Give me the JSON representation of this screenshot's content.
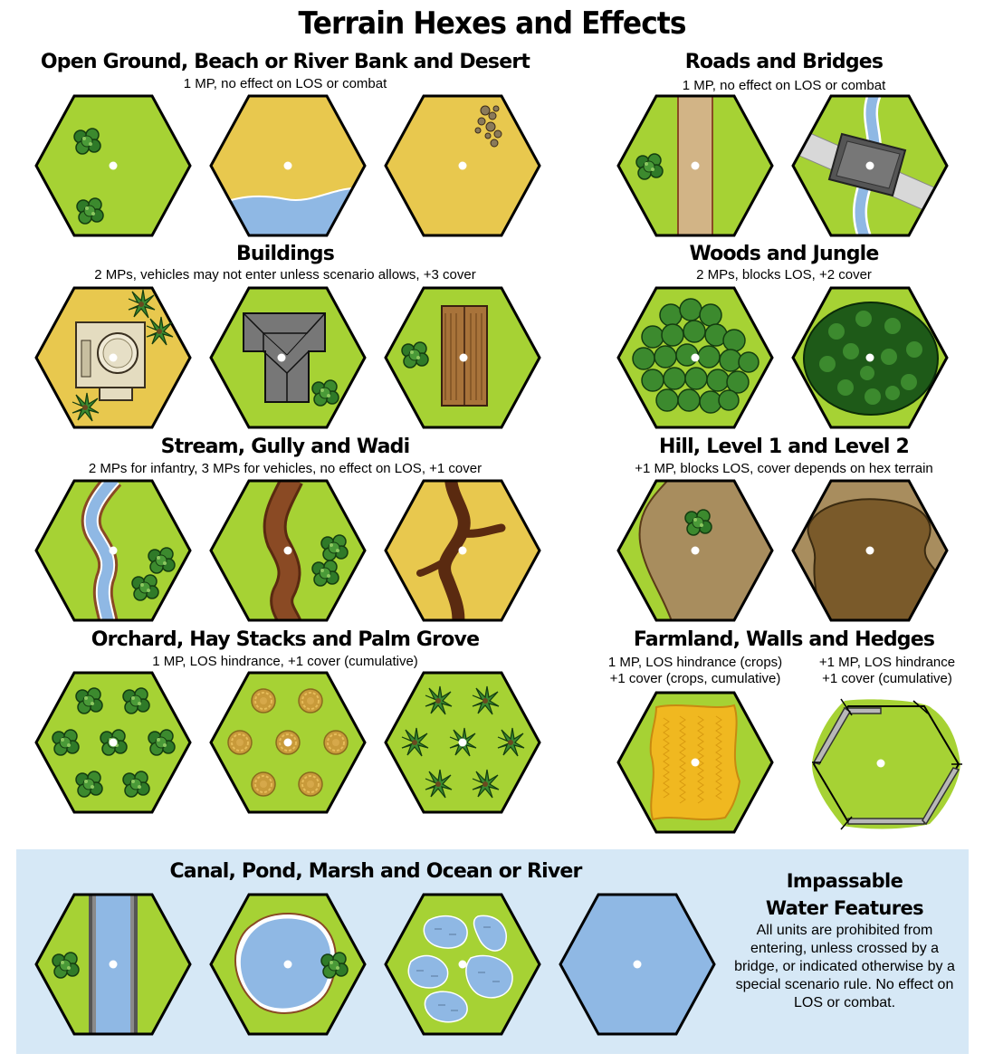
{
  "title": "Terrain Hexes and Effects",
  "sections": {
    "open": {
      "title": "Open Ground, Beach or River Bank and Desert",
      "sub": "1 MP, no effect on LOS or combat"
    },
    "roads": {
      "title": "Roads and Bridges",
      "sub": "1 MP, no effect on LOS or combat"
    },
    "buildings": {
      "title": "Buildings",
      "sub": "2 MPs, vehicles may not enter unless scenario allows, +3 cover"
    },
    "woods": {
      "title": "Woods and Jungle",
      "sub": "2 MPs, blocks LOS, +2 cover"
    },
    "stream": {
      "title": "Stream, Gully and Wadi",
      "sub": "2 MPs for infantry, 3 MPs for vehicles, no effect on LOS, +1 cover"
    },
    "hill": {
      "title": "Hill, Level 1 and Level 2",
      "sub": "+1 MP, blocks LOS, cover depends on hex terrain"
    },
    "orchard": {
      "title": "Orchard, Hay Stacks and Palm Grove",
      "sub": "1 MP, LOS hindrance, +1 cover (cumulative)"
    },
    "farmland": {
      "title": "Farmland, Walls and Hedges",
      "crops_line1": "1 MP, LOS hindrance (crops)",
      "crops_line2": "+1 cover (crops, cumulative)",
      "walls_line1": "+1 MP, LOS hindrance",
      "walls_line2": "+1 cover (cumulative)"
    },
    "water": {
      "title": "Canal, Pond,  Marsh and Ocean or River",
      "impassable_line1": "Impassable",
      "impassable_line2": "Water Features",
      "impassable_text": "All units are prohibited from entering, unless crossed by a bridge, or indicated otherwise by a special scenario rule. No effect on LOS or combat."
    }
  },
  "colors": {
    "grass": "#a6d234",
    "sand": "#e8c84e",
    "water": "#8fb8e4",
    "road": "#d2b486",
    "hill1": "#a88d5e",
    "hill2": "#7a5a2a",
    "mud": "#8a4a24",
    "tree": "#2f7a28",
    "panel": "#d6e8f6"
  }
}
